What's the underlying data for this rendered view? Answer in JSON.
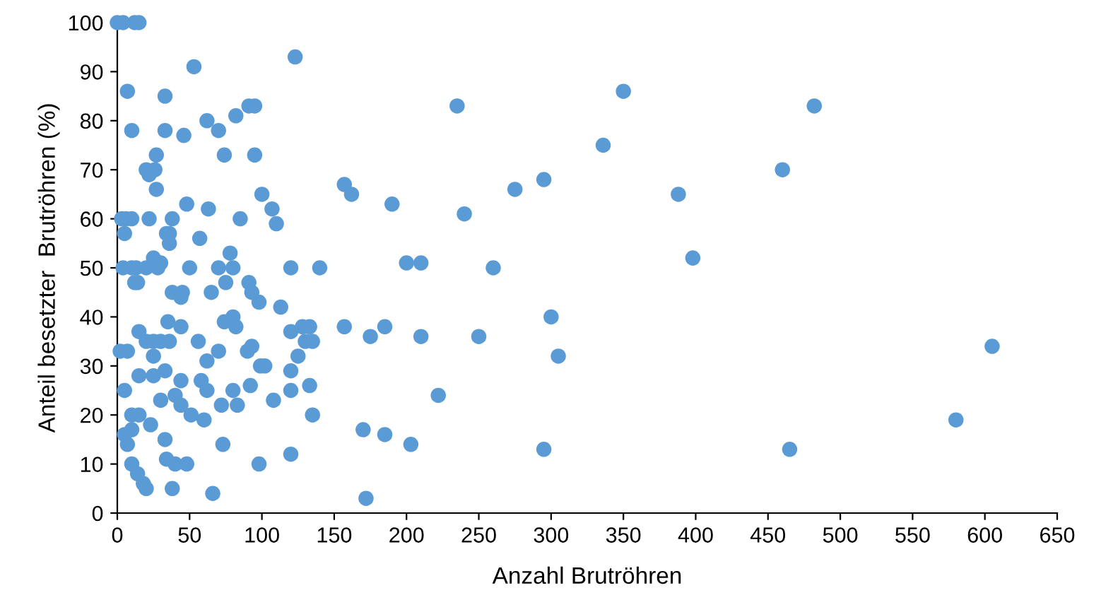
{
  "chart_data": {
    "type": "scatter",
    "xlabel": "Anzahl Brutröhren",
    "ylabel": "Anteil besetzter  Brutröhren (%)",
    "x": [
      482,
      460,
      398,
      388,
      350,
      336,
      605,
      580,
      465,
      305,
      300,
      295,
      295,
      275,
      260,
      250,
      240,
      235,
      222,
      210,
      210,
      203,
      200,
      190,
      185,
      185,
      175,
      172,
      170,
      162,
      157,
      157,
      140,
      135,
      133,
      135,
      133,
      130,
      128,
      125,
      123,
      120,
      120,
      120,
      120,
      120,
      113,
      110,
      107,
      108,
      100,
      102,
      99,
      98,
      98,
      95,
      95,
      91,
      93,
      91,
      93,
      90,
      92,
      85,
      82,
      80,
      80,
      80,
      83,
      82,
      78,
      75,
      74,
      74,
      70,
      70,
      70,
      73,
      72,
      66,
      65,
      63,
      62,
      62,
      60,
      62,
      58,
      57,
      56,
      53,
      50,
      51,
      48,
      46,
      48,
      45,
      44,
      44,
      44,
      44,
      40,
      40,
      38,
      38,
      38,
      36,
      36,
      36,
      35,
      34,
      33,
      33,
      33,
      33,
      34,
      30,
      30,
      30,
      28,
      27,
      26,
      27,
      25,
      25,
      25,
      25,
      23,
      22,
      22,
      20,
      20,
      20,
      20,
      18,
      15,
      15,
      13,
      14,
      12,
      15,
      14,
      10,
      10,
      10,
      10,
      10,
      10,
      7,
      6,
      5,
      7,
      5,
      5,
      7,
      0,
      4,
      12,
      15,
      3,
      4,
      2
    ],
    "values": [
      83,
      70,
      52,
      65,
      86,
      75,
      34,
      19,
      13,
      32,
      40,
      13,
      68,
      66,
      50,
      36,
      61,
      83,
      24,
      51,
      36,
      14,
      51,
      63,
      38,
      16,
      36,
      3,
      17,
      65,
      67,
      38,
      50,
      35,
      26,
      20,
      38,
      35,
      38,
      32,
      93,
      50,
      37,
      29,
      25,
      12,
      42,
      59,
      62,
      23,
      65,
      30,
      30,
      43,
      10,
      83,
      73,
      83,
      45,
      47,
      34,
      33,
      26,
      60,
      38,
      40,
      50,
      25,
      22,
      81,
      53,
      47,
      39,
      73,
      78,
      50,
      33,
      14,
      22,
      4,
      45,
      62,
      80,
      31,
      19,
      25,
      27,
      56,
      35,
      91,
      50,
      20,
      10,
      77,
      63,
      45,
      38,
      44,
      27,
      22,
      10,
      24,
      5,
      45,
      60,
      57,
      55,
      35,
      39,
      57,
      85,
      78,
      29,
      15,
      11,
      35,
      51,
      23,
      50,
      73,
      70,
      66,
      52,
      35,
      28,
      32,
      18,
      69,
      60,
      70,
      50,
      35,
      5,
      6,
      37,
      20,
      50,
      47,
      47,
      28,
      8,
      78,
      60,
      50,
      20,
      17,
      10,
      86,
      60,
      57,
      33,
      25,
      16,
      14,
      100,
      100,
      100,
      100,
      60,
      50,
      33
    ],
    "color": "#5b9bd5",
    "marker": "circle",
    "xlim": [
      0,
      650
    ],
    "ylim": [
      0,
      100
    ],
    "xticks": [
      0,
      50,
      100,
      150,
      200,
      250,
      300,
      350,
      400,
      450,
      500,
      550,
      600,
      650
    ],
    "yticks": [
      0,
      10,
      20,
      30,
      40,
      50,
      60,
      70,
      80,
      90,
      100
    ],
    "grid": false,
    "legend": false
  }
}
